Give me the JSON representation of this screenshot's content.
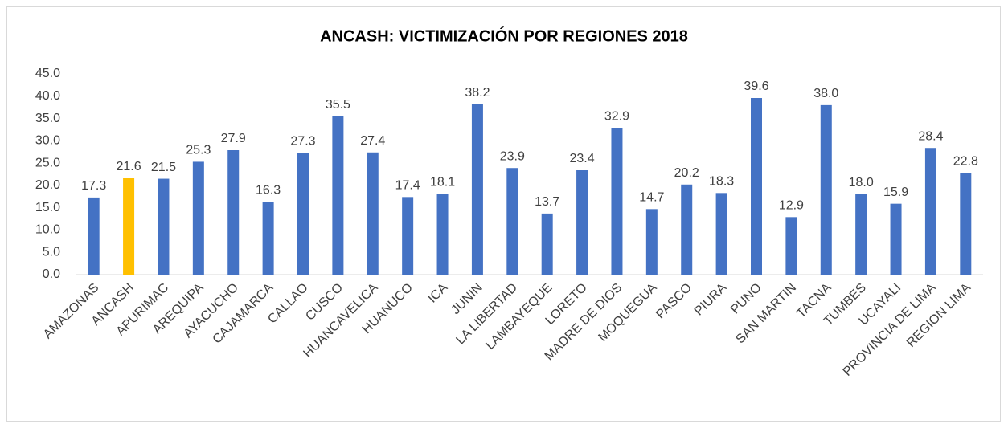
{
  "chart_data": {
    "type": "bar",
    "title": "ANCASH: VICTIMIZACIÓN POR REGIONES 2018",
    "categories": [
      "AMAZONAS",
      "ANCASH",
      "APURIMAC",
      "AREQUIPA",
      "AYACUCHO",
      "CAJAMARCA",
      "CALLAO",
      "CUSCO",
      "HUANCAVELICA",
      "HUANUCO",
      "ICA",
      "JUNIN",
      "LA LIBERTAD",
      "LAMBAYEQUE",
      "LORETO",
      "MADRE DE DIOS",
      "MOQUEGUA",
      "PASCO",
      "PIURA",
      "PUNO",
      "SAN MARTIN",
      "TACNA",
      "TUMBES",
      "UCAYALI",
      "PROVINCIA DE LIMA",
      "REGION LIMA"
    ],
    "values": [
      17.3,
      21.6,
      21.5,
      25.3,
      27.9,
      16.3,
      27.3,
      35.5,
      27.4,
      17.4,
      18.1,
      38.2,
      23.9,
      13.7,
      23.4,
      32.9,
      14.7,
      20.2,
      18.3,
      39.6,
      12.9,
      38.0,
      18.0,
      15.9,
      28.4,
      22.8
    ],
    "value_labels": [
      "17.3",
      "21.6",
      "21.5",
      "25.3",
      "27.9",
      "16.3",
      "27.3",
      "35.5",
      "27.4",
      "17.4",
      "18.1",
      "38.2",
      "23.9",
      "13.7",
      "23.4",
      "32.9",
      "14.7",
      "20.2",
      "18.3",
      "39.6",
      "12.9",
      "38.0",
      "18.0",
      "15.9",
      "28.4",
      "22.8"
    ],
    "colors": [
      "#4472c4",
      "#ffc000",
      "#4472c4",
      "#4472c4",
      "#4472c4",
      "#4472c4",
      "#4472c4",
      "#4472c4",
      "#4472c4",
      "#4472c4",
      "#4472c4",
      "#4472c4",
      "#4472c4",
      "#4472c4",
      "#4472c4",
      "#4472c4",
      "#4472c4",
      "#4472c4",
      "#4472c4",
      "#4472c4",
      "#4472c4",
      "#4472c4",
      "#4472c4",
      "#4472c4",
      "#4472c4",
      "#4472c4"
    ],
    "ylim": [
      0,
      45
    ],
    "yticks": [
      {
        "value": 0,
        "label": "0.0"
      },
      {
        "value": 5,
        "label": "5.0"
      },
      {
        "value": 10,
        "label": "10.0"
      },
      {
        "value": 15,
        "label": "15.0"
      },
      {
        "value": 20,
        "label": "20.0"
      },
      {
        "value": 25,
        "label": "25.0"
      },
      {
        "value": 30,
        "label": "30.0"
      },
      {
        "value": 35,
        "label": "35.0"
      },
      {
        "value": 40,
        "label": "40.0"
      },
      {
        "value": 45,
        "label": "45.0"
      }
    ],
    "grid": false
  }
}
